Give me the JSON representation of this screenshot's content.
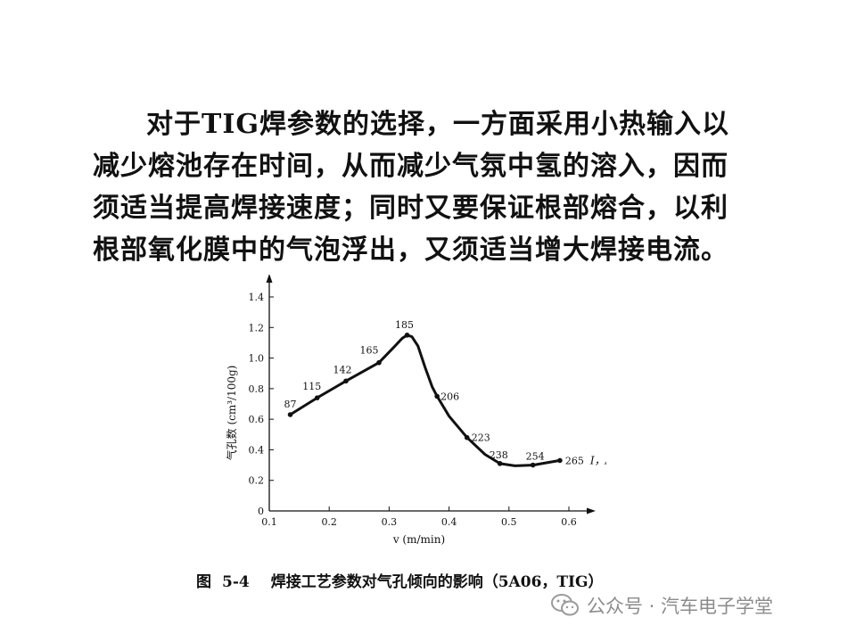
{
  "paragraph": {
    "lines": [
      "对于TIG焊参数的选择，一方面采用小热输入以",
      "减少熔池存在时间，从而减少气氛中氢的溶入，因而",
      "须适当提高焊接速度；同时又要保证根部熔合，以利",
      "根部氧化膜中的气泡浮出，又须适当增大焊接电流。"
    ]
  },
  "caption": {
    "figure": "图",
    "number": "5-4",
    "text": "焊接工艺参数对气孔倾向的影响（5A06，TIG）"
  },
  "watermark": {
    "icon": "wechat-icon",
    "text": "公众号 · 汽车电子学堂"
  },
  "chart_data": {
    "type": "line",
    "title": "",
    "xlabel": "v (m/min)",
    "ylabel": "气孔数 (cm³/100g)",
    "xlim": [
      0.1,
      0.6
    ],
    "ylim": [
      0,
      1.4
    ],
    "xticks": [
      "0.1",
      "0.2",
      "0.3",
      "0.4",
      "0.5",
      "0.6"
    ],
    "yticks": [
      "0",
      "0.2",
      "0.4",
      "0.6",
      "0.8",
      "1.0",
      "1.2",
      "1.4"
    ],
    "grid": false,
    "point_label_title": "I，A",
    "series": [
      {
        "points": [
          {
            "x": 0.135,
            "y": 0.63,
            "label": "87"
          },
          {
            "x": 0.18,
            "y": 0.74,
            "label": "115"
          },
          {
            "x": 0.228,
            "y": 0.85,
            "label": "142"
          },
          {
            "x": 0.283,
            "y": 0.97,
            "label": "165"
          },
          {
            "x": 0.33,
            "y": 1.15,
            "label": "185"
          },
          {
            "x": 0.38,
            "y": 0.75,
            "label": "206"
          },
          {
            "x": 0.43,
            "y": 0.48,
            "label": "223"
          },
          {
            "x": 0.485,
            "y": 0.31,
            "label": "238"
          },
          {
            "x": 0.54,
            "y": 0.3,
            "label": "254"
          },
          {
            "x": 0.585,
            "y": 0.33,
            "label": "265"
          }
        ],
        "curve": [
          [
            0.135,
            0.63
          ],
          [
            0.18,
            0.74
          ],
          [
            0.228,
            0.85
          ],
          [
            0.283,
            0.97
          ],
          [
            0.31,
            1.08
          ],
          [
            0.322,
            1.13
          ],
          [
            0.33,
            1.15
          ],
          [
            0.338,
            1.14
          ],
          [
            0.348,
            1.08
          ],
          [
            0.36,
            0.94
          ],
          [
            0.372,
            0.81
          ],
          [
            0.38,
            0.75
          ],
          [
            0.4,
            0.62
          ],
          [
            0.43,
            0.48
          ],
          [
            0.46,
            0.37
          ],
          [
            0.485,
            0.31
          ],
          [
            0.51,
            0.295
          ],
          [
            0.54,
            0.3
          ],
          [
            0.585,
            0.33
          ]
        ]
      }
    ]
  }
}
